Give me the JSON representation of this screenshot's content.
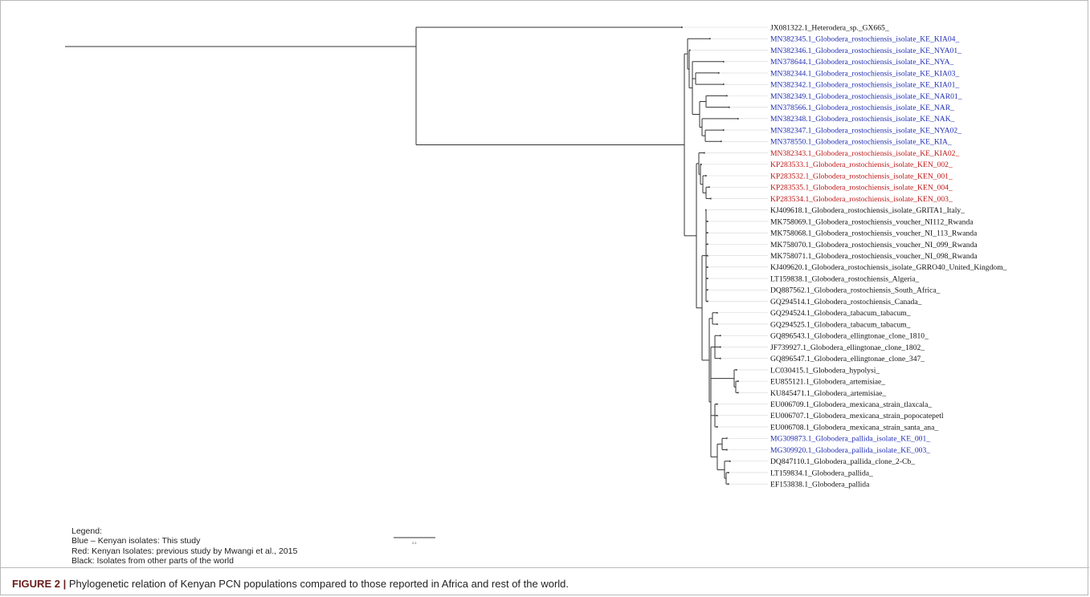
{
  "colors": {
    "blue": "#1f2db4",
    "red": "#c01616",
    "black": "#111111",
    "branch": "#333333"
  },
  "tree": {
    "root_x": 80,
    "scale": {
      "label": "0.1"
    },
    "tips": [
      {
        "label": "JX081322.1_Heterodera_sp._GX665_",
        "color": "black",
        "x": 848
      },
      {
        "label": "MN382345.1_Globodera_rostochiensis_isolate_KE_KIA04_",
        "color": "blue",
        "x": 883
      },
      {
        "label": "MN382346.1_Globodera_rostochiensis_isolate_KE_NYA01_",
        "color": "blue",
        "x": 858
      },
      {
        "label": "MN378644.1_Globodera_rostochiensis_isolate_KE_NYA_",
        "color": "blue",
        "x": 900
      },
      {
        "label": "MN382344.1_Globodera_rostochiensis_isolate_KE_KIA03_",
        "color": "blue",
        "x": 894
      },
      {
        "label": "MN382342.1_Globodera_rostochiensis_isolate_KE_KIA01_",
        "color": "blue",
        "x": 900
      },
      {
        "label": "MN382349.1_Globodera_rostochiensis_isolate_KE_NAR01_",
        "color": "blue",
        "x": 904
      },
      {
        "label": "MN378566.1_Globodera_rostochiensis_isolate_KE_NAR_",
        "color": "blue",
        "x": 907
      },
      {
        "label": "MN382348.1_Globodera_rostochiensis_isolate_KE_NAK_",
        "color": "blue",
        "x": 918
      },
      {
        "label": "MN382347.1_Globodera_rostochiensis_isolate_KE_NYA02_",
        "color": "blue",
        "x": 900
      },
      {
        "label": "MN378550.1_Globodera_rostochiensis_isolate_KE_KIA_",
        "color": "blue",
        "x": 897
      },
      {
        "label": "MN382343.1_Globodera_rostochiensis_isolate_KE_KIA02_",
        "color": "red",
        "x": 876
      },
      {
        "label": "KP283533.1_Globodera_rostochiensis_isolate_KEN_002_",
        "color": "red",
        "x": 872
      },
      {
        "label": "KP283532.1_Globodera_rostochiensis_isolate_KEN_001_",
        "color": "red",
        "x": 878
      },
      {
        "label": "KP283535.1_Globodera_rostochiensis_isolate_KEN_004_",
        "color": "red",
        "x": 882
      },
      {
        "label": "KP283534.1_Globodera_rostochiensis_isolate_KEN_003_",
        "color": "red",
        "x": 884
      },
      {
        "label": "KJ409618.1_Globodera_rostochiensis_isolate_GRITA1_Italy_",
        "color": "black",
        "x": 878
      },
      {
        "label": "MK758069.1_Globodera_rostochiensis_voucher_NI112_Rwanda",
        "color": "black",
        "x": 880
      },
      {
        "label": "MK758068.1_Globodera_rostochiensis_voucher_NI_113_Rwanda",
        "color": "black",
        "x": 880
      },
      {
        "label": "MK758070.1_Globodera_rostochiensis_voucher_NI_099_Rwanda",
        "color": "black",
        "x": 880
      },
      {
        "label": "MK758071.1_Globodera_rostochiensis_voucher_NI_098_Rwanda",
        "color": "black",
        "x": 880
      },
      {
        "label": "KJ409620.1_Globodera_rostochiensis_isolate_GRRO40_United_Kingdom_",
        "color": "black",
        "x": 880
      },
      {
        "label": "LT159838.1_Globodera_rostochiensis_Algeria_",
        "color": "black",
        "x": 880
      },
      {
        "label": "DQ887562.1_Globodera_rostochiensis_South_Africa_",
        "color": "black",
        "x": 880
      },
      {
        "label": "GQ294514.1_Globodera_rostochiensis_Canada_",
        "color": "black",
        "x": 880
      },
      {
        "label": "GQ294524.1_Globodera_tabacum_tabacum_",
        "color": "black",
        "x": 892
      },
      {
        "label": "GQ294525.1_Globodera_tabacum_tabacum_",
        "color": "black",
        "x": 892
      },
      {
        "label": "GQ896543.1_Globodera_ellingtonae_clone_1810_",
        "color": "black",
        "x": 896
      },
      {
        "label": "JF739927.1_Globodera_ellingtonae_clone_1802_",
        "color": "black",
        "x": 896
      },
      {
        "label": "GQ896547.1_Globodera_ellingtonae_clone_347_",
        "color": "black",
        "x": 896
      },
      {
        "label": "LC030415.1_Globodera_hypolysi_",
        "color": "black",
        "x": 916
      },
      {
        "label": "EU855121.1_Globodera_artemisiae_",
        "color": "black",
        "x": 918
      },
      {
        "label": "KU845471.1_Globodera_artemisiae_",
        "color": "black",
        "x": 918
      },
      {
        "label": "EU006709.1_Globodera_mexicana_strain_tlaxcala_",
        "color": "black",
        "x": 892
      },
      {
        "label": "EU006707.1_Globodera_mexicana_strain_popocatepetl",
        "color": "black",
        "x": 892
      },
      {
        "label": "EU006708.1_Globodera_mexicana_strain_santa_ana_",
        "color": "black",
        "x": 892
      },
      {
        "label": "MG309873.1_Globodera_pallida_isolate_KE_001_",
        "color": "blue",
        "x": 904
      },
      {
        "label": "MG309920.1_Globodera_pallida_isolate_KE_003_",
        "color": "blue",
        "x": 904
      },
      {
        "label": "DQ847110.1_Globodera_pallida_clone_2-Cb_",
        "color": "black",
        "x": 908
      },
      {
        "label": "LT159834.1_Globodera_pallida_",
        "color": "black",
        "x": 906
      },
      {
        "label": "EF153838.1_Globodera_pallida",
        "color": "black",
        "x": 906
      }
    ]
  },
  "legend": {
    "title": "Legend:",
    "items": [
      "Blue – Kenyan isolates: This study",
      "Red: Kenyan Isolates: previous study by Mwangi et al., 2015",
      "Black: Isolates from other parts of the world"
    ]
  },
  "caption": {
    "label": "FIGURE 2 |",
    "text": " Phylogenetic relation of Kenyan PCN populations compared to those reported in Africa and rest of the world."
  }
}
